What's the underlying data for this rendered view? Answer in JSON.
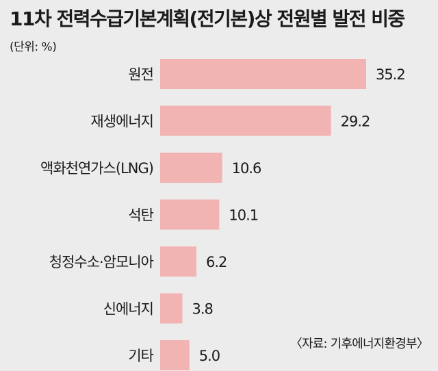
{
  "header": {
    "title": "11차 전력수급기본계획(전기본)상 전원별 발전 비중",
    "unit": "(단위: %)"
  },
  "source": "〈자료: 기후에너지환경부〉",
  "colors": {
    "bar": "#f2b3b3",
    "background": "#ececec"
  },
  "chart_data": {
    "type": "bar",
    "orientation": "horizontal",
    "title": "11차 전력수급기본계획(전기본)상 전원별 발전 비중",
    "unit": "%",
    "categories": [
      "원전",
      "재생에너지",
      "액화천연가스(LNG)",
      "석탄",
      "청정수소·암모니아",
      "신에너지",
      "기타"
    ],
    "values": [
      35.2,
      29.2,
      10.6,
      10.1,
      6.2,
      3.8,
      5.0
    ],
    "value_labels": [
      "35.2",
      "29.2",
      "10.6",
      "10.1",
      "6.2",
      "3.8",
      "5.0"
    ],
    "grid": false,
    "legend": "none"
  }
}
